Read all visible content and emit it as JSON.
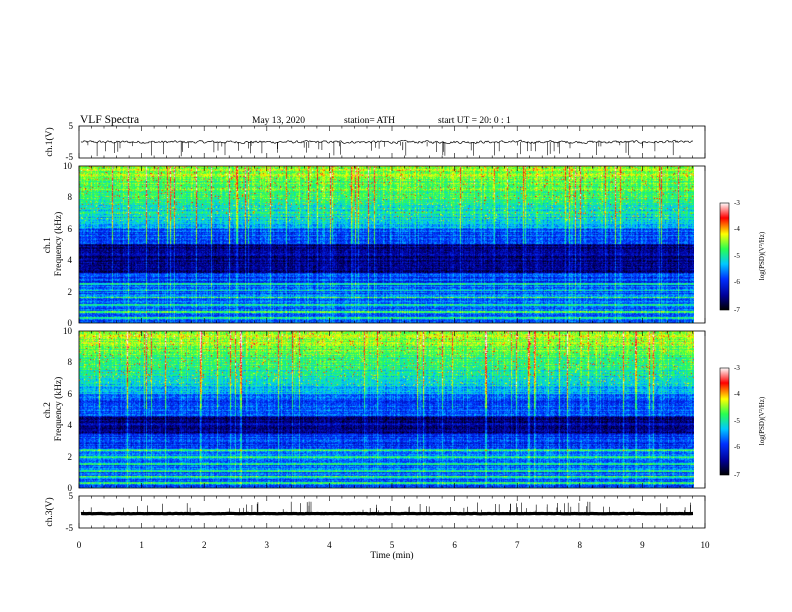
{
  "header": {
    "title": "VLF  Spectra",
    "date": "May 13, 2020",
    "station": "station= ATH",
    "start_ut": "start  UT  =    20: 0   : 1"
  },
  "chart_data": [
    {
      "type": "line",
      "name": "ch1-waveform",
      "ylabel": "ch.1(V)",
      "ylim": [
        -5,
        5
      ],
      "yticks": [
        "5",
        "-5"
      ],
      "xlim": [
        0,
        10
      ],
      "x_data_end": 9.82,
      "level": 0,
      "noise": 0.35,
      "spike_sign": "negative"
    },
    {
      "type": "heatmap",
      "name": "ch1-spectrogram",
      "ylabel": "ch.1\nFrequency  (kHz)",
      "ylim": [
        0,
        10
      ],
      "yticks": [
        "0",
        "2",
        "4",
        "6",
        "8",
        "10"
      ],
      "xlim": [
        0,
        10
      ],
      "x_data_end": 9.82,
      "colorbar": {
        "label": "log(PSD)(V²/Hz)",
        "range": [
          -7,
          -3
        ],
        "ticks": [
          "-3",
          "-4",
          "-5",
          "-6",
          "-7"
        ]
      },
      "dark_band_khz": [
        3.2,
        5.0
      ],
      "tone_lines_khz": [
        0.3,
        0.7,
        1.1,
        1.6,
        2.05,
        2.45
      ]
    },
    {
      "type": "heatmap",
      "name": "ch2-spectrogram",
      "ylabel": "ch.2\nFrequency  (kHz)",
      "ylim": [
        0,
        10
      ],
      "yticks": [
        "0",
        "2",
        "4",
        "6",
        "8",
        "10"
      ],
      "xlim": [
        0,
        10
      ],
      "x_data_end": 9.82,
      "colorbar": {
        "label": "log(PSD)(V²/Hz)",
        "range": [
          -7,
          -3
        ],
        "ticks": [
          "-3",
          "-4",
          "-5",
          "-6",
          "-7"
        ]
      },
      "dark_band_khz": [
        3.4,
        4.6
      ],
      "tone_lines_khz": [
        0.3,
        0.7,
        1.05,
        1.5,
        1.95,
        2.4
      ]
    },
    {
      "type": "line",
      "name": "ch3-waveform",
      "ylabel": "ch.3(V)",
      "ylim": [
        -5,
        5
      ],
      "yticks": [
        "5",
        "-5"
      ],
      "xlim": [
        0,
        10
      ],
      "x_data_end": 9.82,
      "level": -0.5,
      "noise": 0.05,
      "spike_sign": "positive",
      "xlabel": "Time  (min)",
      "xticks": [
        "0",
        "1",
        "2",
        "3",
        "4",
        "5",
        "6",
        "7",
        "8",
        "9",
        "10"
      ]
    }
  ],
  "colors": {
    "colormap": [
      "#000000",
      "#00009a",
      "#0030ff",
      "#00c8ff",
      "#28ff50",
      "#ffff00",
      "#ff0000",
      "#ffffff"
    ],
    "trace": "#000000"
  }
}
